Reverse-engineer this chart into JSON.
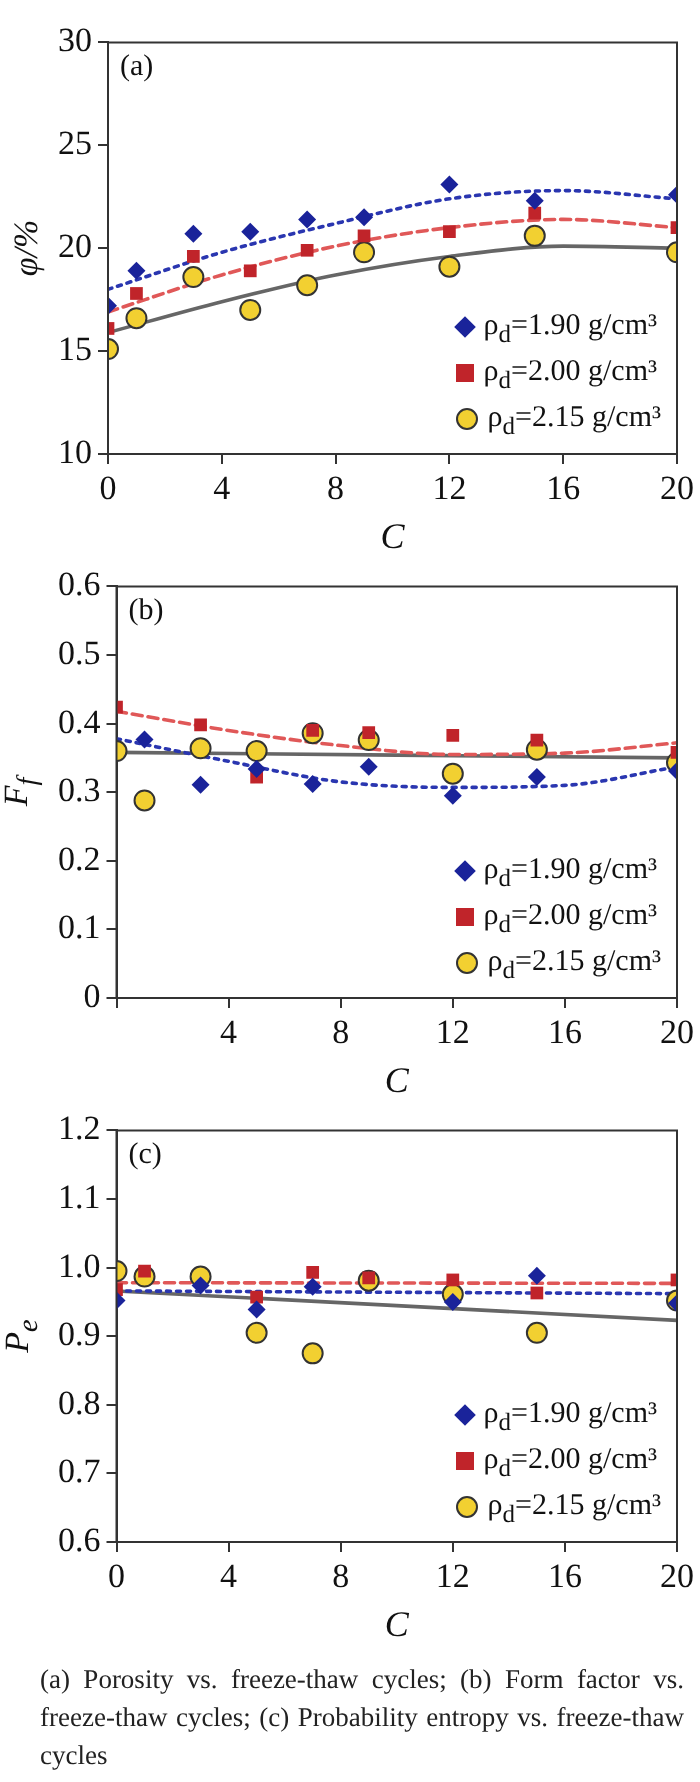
{
  "chart_data": [
    {
      "type": "scatter",
      "xlabel": "C",
      "ylabel": "φ/%",
      "xlim": [
        0,
        20
      ],
      "xticks": [
        0,
        4,
        8,
        12,
        16,
        20
      ],
      "ylim": [
        10,
        30
      ],
      "yticks": [
        10,
        15,
        20,
        25,
        30
      ],
      "legend": "bottom right",
      "annotations": [
        "(a)"
      ],
      "x": [
        0,
        1,
        3,
        5,
        7,
        9,
        12,
        15,
        20
      ],
      "series": [
        {
          "name": "ρ$_{d}$=1.90 g/cm³",
          "color": "#1a239a",
          "marker": "diamond",
          "values": [
            17.2,
            18.9,
            20.7,
            20.8,
            21.4,
            21.5,
            23.1,
            22.3,
            22.6
          ]
        },
        {
          "name": "ρ$_{d}$=2.00 g/cm³",
          "color": "#c0242a",
          "marker": "square",
          "values": [
            16.1,
            17.8,
            19.6,
            18.9,
            19.9,
            20.6,
            20.8,
            21.7,
            21.0
          ]
        },
        {
          "name": "ρ$_{d}$=2.15 g/cm³",
          "color": "#f2d031",
          "marker": "circle",
          "values": [
            15.1,
            16.6,
            18.6,
            17.0,
            18.2,
            19.8,
            19.1,
            20.6,
            19.8
          ]
        },
        {
          "type": "line",
          "color": "#2a36b0",
          "marker": "none",
          "line_style": "dotted",
          "x": [
            0,
            4,
            8,
            12,
            16,
            20
          ],
          "values": [
            18.0,
            19.8,
            21.2,
            22.4,
            22.8,
            22.4
          ]
        },
        {
          "type": "line",
          "color": "#e05858",
          "marker": "none",
          "line_style": "dashed",
          "x": [
            0,
            4,
            8,
            12,
            16,
            20
          ],
          "values": [
            16.9,
            18.7,
            20.1,
            21.0,
            21.4,
            21.0
          ]
        },
        {
          "type": "line",
          "color": "#666666",
          "marker": "none",
          "line_style": "solid",
          "x": [
            0,
            4,
            8,
            12,
            16,
            20
          ],
          "values": [
            15.9,
            17.4,
            18.7,
            19.6,
            20.1,
            20.0
          ]
        }
      ]
    },
    {
      "type": "scatter",
      "xlabel": "C",
      "ylabel": "F$_{f}$",
      "xlim": [
        0,
        20
      ],
      "xticks": [
        {
          "value": 0,
          "label": null
        },
        4,
        8,
        12,
        16,
        20
      ],
      "ylim": [
        0,
        0.6
      ],
      "yticks": [
        0,
        0.1,
        0.2,
        0.3,
        0.4,
        0.5,
        0.6
      ],
      "legend": "bottom right",
      "annotations": [
        "(b)"
      ],
      "x": [
        0,
        1,
        3,
        5,
        7,
        9,
        12,
        15,
        20
      ],
      "series": [
        {
          "name": "ρ$_{d}$=1.90 g/cm³",
          "color": "#1a239a",
          "marker": "diamond",
          "values": [
            null,
            0.377,
            0.311,
            0.334,
            0.312,
            0.337,
            0.295,
            0.322,
            0.331
          ]
        },
        {
          "name": "ρ$_{d}$=2.00 g/cm³",
          "color": "#c0242a",
          "marker": "square",
          "values": [
            0.424,
            null,
            0.398,
            0.322,
            0.39,
            0.387,
            0.383,
            0.376,
            0.358
          ]
        },
        {
          "name": "ρ$_{d}$=2.15 g/cm³",
          "color": "#f2d031",
          "marker": "circle",
          "values": [
            0.36,
            0.288,
            0.364,
            0.36,
            0.386,
            0.376,
            0.327,
            0.362,
            0.343
          ]
        },
        {
          "type": "line",
          "color": "#2a36b0",
          "marker": "none",
          "line_style": "dotted",
          "x": [
            0,
            4,
            8,
            12,
            16,
            20
          ],
          "values": [
            0.378,
            0.345,
            0.315,
            0.307,
            0.31,
            0.337
          ]
        },
        {
          "type": "line",
          "color": "#e05858",
          "marker": "none",
          "line_style": "dashed",
          "x": [
            0,
            4,
            8,
            12,
            16,
            20
          ],
          "values": [
            0.418,
            0.39,
            0.368,
            0.355,
            0.357,
            0.372
          ]
        },
        {
          "type": "line",
          "color": "#666666",
          "marker": "none",
          "line_style": "solid",
          "x": [
            0,
            20
          ],
          "values": [
            0.358,
            0.35
          ]
        }
      ]
    },
    {
      "type": "scatter",
      "xlabel": "C",
      "ylabel": "P$_{e}$",
      "xlim": [
        0,
        20
      ],
      "xticks": [
        0,
        4,
        8,
        12,
        16,
        20
      ],
      "ylim": [
        0.6,
        1.2
      ],
      "yticks": [
        0.6,
        0.7,
        0.8,
        0.9,
        {
          "value": 1,
          "label": "1.0"
        },
        1.1,
        1.2
      ],
      "legend": "bottom right",
      "annotations": [
        "(c)",
        "(a) Porosity vs. freeze-thaw cycles; (b) Form factor vs. freeze-thaw cycles; (c) Probability entropy vs. freeze-thaw cycles"
      ],
      "x": [
        0,
        1,
        3,
        5,
        7,
        9,
        12,
        15,
        20
      ],
      "series": [
        {
          "name": "ρ$_{d}$=1.90 g/cm³",
          "color": "#1a239a",
          "marker": "diamond",
          "values": [
            0.952,
            null,
            0.974,
            0.939,
            0.972,
            null,
            0.95,
            0.988,
            0.948
          ]
        },
        {
          "name": "ρ$_{d}$=2.00 g/cm³",
          "color": "#c0242a",
          "marker": "square",
          "values": [
            0.968,
            0.995,
            null,
            0.957,
            0.993,
            0.985,
            0.982,
            0.963,
            0.982
          ]
        },
        {
          "name": "ρ$_{d}$=2.15 g/cm³",
          "color": "#f2d031",
          "marker": "circle",
          "values": [
            0.995,
            0.987,
            0.987,
            0.905,
            0.875,
            0.981,
            0.961,
            0.905,
            0.952
          ]
        },
        {
          "type": "line",
          "color": "#2a36b0",
          "marker": "none",
          "line_style": "dotted",
          "x": [
            0,
            20
          ],
          "values": [
            0.966,
            0.962
          ]
        },
        {
          "type": "line",
          "color": "#e05858",
          "marker": "none",
          "line_style": "dashed",
          "x": [
            0,
            20
          ],
          "values": [
            0.978,
            0.977
          ]
        },
        {
          "type": "line",
          "color": "#666666",
          "marker": "none",
          "line_style": "solid",
          "x": [
            0,
            20
          ],
          "values": [
            0.966,
            0.923
          ]
        }
      ]
    }
  ]
}
